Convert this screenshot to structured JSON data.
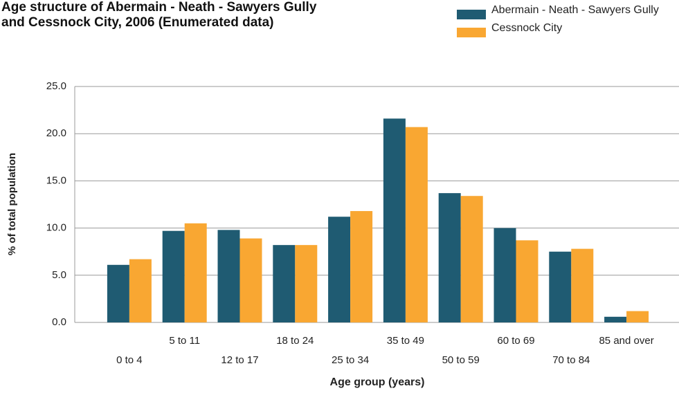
{
  "chart_data": {
    "type": "bar",
    "title": "Age structure of Abermain - Neath - Sawyers Gully and Cessnock City, 2006 (Enumerated data)",
    "x_label": "Age group (years)",
    "y_label": "% of total population",
    "categories": [
      "0 to 4",
      "5 to 11",
      "12 to 17",
      "18 to 24",
      "25 to 34",
      "35 to 49",
      "50 to 59",
      "60 to 69",
      "70 to 84",
      "85 and over"
    ],
    "series": [
      {
        "name": "Abermain - Neath - Sawyers Gully",
        "color": "#1f5b72",
        "values": [
          6.1,
          9.7,
          9.8,
          8.2,
          11.2,
          21.6,
          13.7,
          10.0,
          7.5,
          0.6
        ]
      },
      {
        "name": "Cessnock City",
        "color": "#f9a732",
        "values": [
          6.7,
          10.5,
          8.9,
          8.2,
          11.8,
          20.7,
          13.4,
          8.7,
          7.8,
          1.2
        ]
      }
    ],
    "ylim": [
      0,
      25
    ],
    "yticks": [
      {
        "value": 0,
        "label": "0.0"
      },
      {
        "value": 5,
        "label": "5.0"
      },
      {
        "value": 10,
        "label": "10.0"
      },
      {
        "value": 15,
        "label": "15.0"
      },
      {
        "value": 20,
        "label": "20.0"
      },
      {
        "value": 25,
        "label": "25.0"
      }
    ],
    "grid": true
  }
}
